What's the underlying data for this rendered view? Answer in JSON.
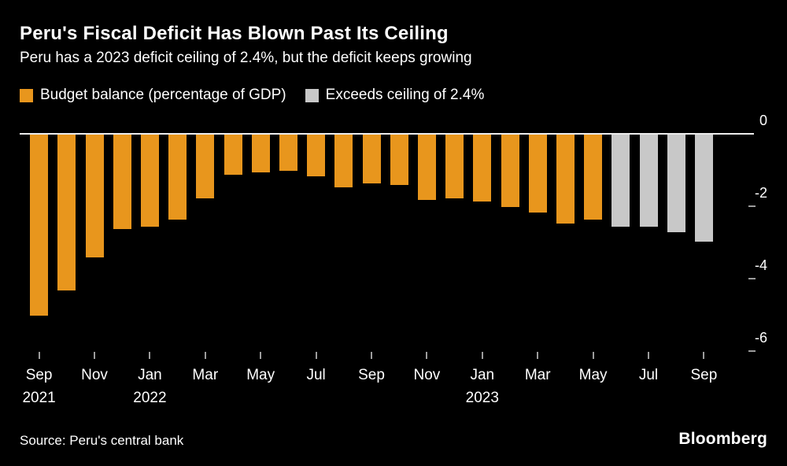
{
  "header": {
    "title": "Peru's Fiscal Deficit Has Blown Past Its Ceiling",
    "subtitle": "Peru has a 2023 deficit ceiling of 2.4%, but the deficit keeps growing"
  },
  "legend": [
    {
      "label": "Budget balance (percentage of GDP)",
      "color": "#E8961D"
    },
    {
      "label": "Exceeds ceiling of 2.4%",
      "color": "#C8C8C8"
    }
  ],
  "chart_data": {
    "type": "bar",
    "title": "Peru's Fiscal Deficit Has Blown Past Its Ceiling",
    "subtitle": "Peru has a 2023 deficit ceiling of 2.4%, but the deficit keeps growing",
    "ylabel": "Budget balance (percentage of GDP)",
    "ceiling": -2.4,
    "categories": [
      "Sep 2021",
      "Oct 2021",
      "Nov 2021",
      "Dec 2021",
      "Jan 2022",
      "Feb 2022",
      "Mar 2022",
      "Apr 2022",
      "May 2022",
      "Jun 2022",
      "Jul 2022",
      "Aug 2022",
      "Sep 2022",
      "Oct 2022",
      "Nov 2022",
      "Dec 2022",
      "Jan 2023",
      "Feb 2023",
      "Mar 2023",
      "Apr 2023",
      "May 2023",
      "Jun 2023",
      "Jul 2023",
      "Aug 2023",
      "Sep 2023"
    ],
    "values": [
      -5.0,
      -4.3,
      -3.4,
      -2.6,
      -2.55,
      -2.35,
      -1.75,
      -1.1,
      -1.05,
      -1.0,
      -1.15,
      -1.45,
      -1.35,
      -1.4,
      -1.8,
      -1.75,
      -1.85,
      -2.0,
      -2.15,
      -2.45,
      -2.35,
      -2.55,
      -2.55,
      -2.7,
      -2.95
    ],
    "gray_start_index": 21,
    "ylim": [
      -6.6,
      0
    ],
    "yticks": [
      0,
      -2,
      -4,
      -6
    ],
    "ytick_labels": [
      "0",
      "-2",
      "-4",
      "-6"
    ],
    "x_tick_indices": [
      0,
      2,
      4,
      6,
      8,
      10,
      12,
      14,
      16,
      18,
      20,
      22,
      24
    ],
    "x_tick_labels": [
      "Sep",
      "Nov",
      "Jan",
      "Mar",
      "May",
      "Jul",
      "Sep",
      "Nov",
      "Jan",
      "Mar",
      "May",
      "Jul",
      "Sep"
    ],
    "year_labels": [
      {
        "index": 0,
        "label": "2021"
      },
      {
        "index": 4,
        "label": "2022"
      },
      {
        "index": 16,
        "label": "2023"
      }
    ],
    "legend_position": "top",
    "grid": false,
    "colors": {
      "bar": "#E8961D",
      "exceed": "#C8C8C8",
      "zero_line": "#ECECEC",
      "tick": "#9C9C9C",
      "axis_text": "#FFFFFF"
    }
  },
  "footer": {
    "source": "Source: Peru's central bank",
    "brand": "Bloomberg"
  }
}
